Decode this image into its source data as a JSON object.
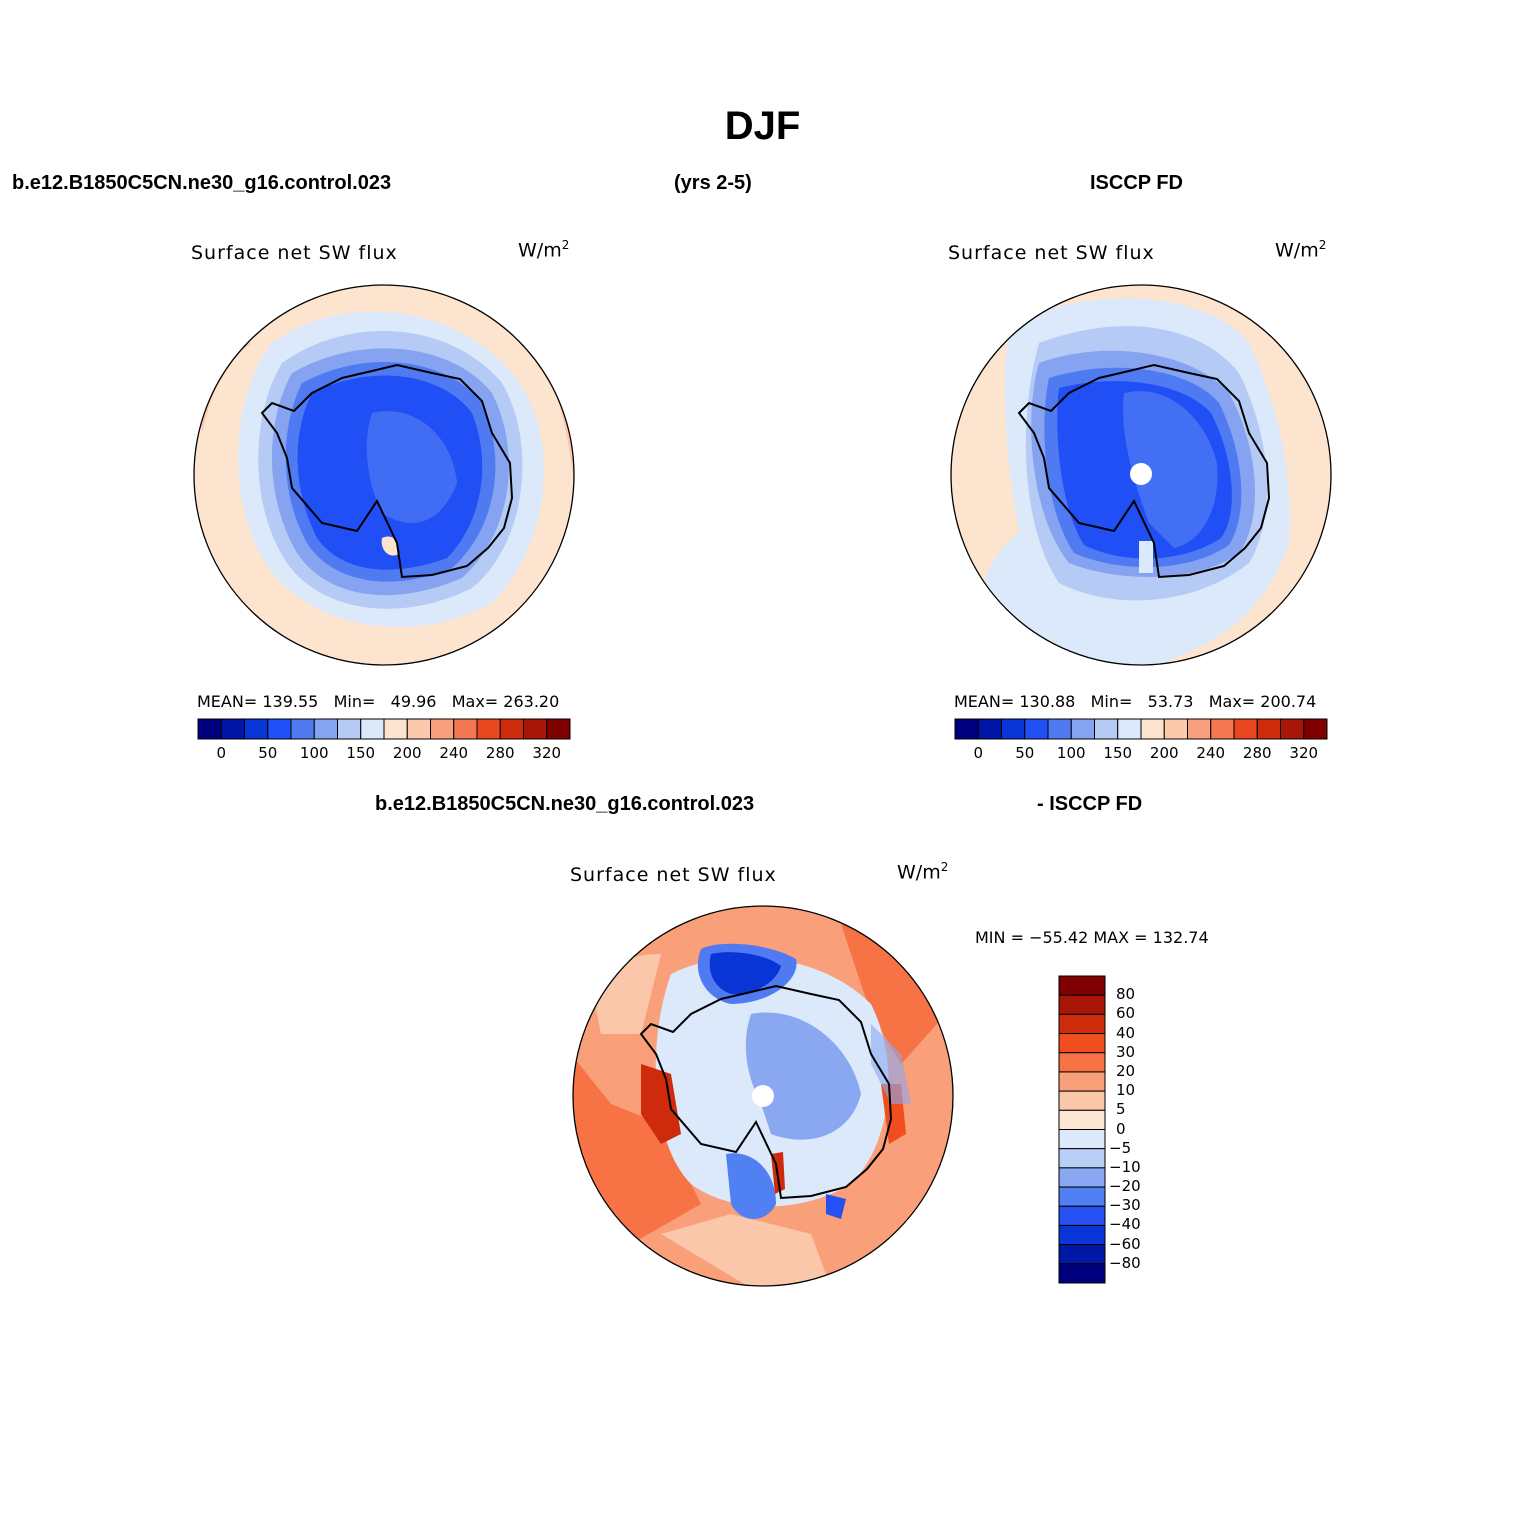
{
  "header": {
    "title": "DJF",
    "case_name": "b.e12.B1850C5CN.ne30_g16.control.023",
    "years": "(yrs 2-5)",
    "obs_name": "ISCCP FD"
  },
  "panels": [
    {
      "id": "model",
      "variable": "Surface net SW flux",
      "units": "W/m",
      "units_superscript": "2",
      "stats": {
        "mean_label": "MEAN=",
        "mean": "139.55",
        "min_label": "Min=",
        "min": "49.96",
        "max_label": "Max=",
        "max": "263.20"
      }
    },
    {
      "id": "obs",
      "variable": "Surface net SW flux",
      "units": "W/m",
      "units_superscript": "2",
      "stats": {
        "mean_label": "MEAN=",
        "mean": "130.88",
        "min_label": "Min=",
        "min": "53.73",
        "max_label": "Max=",
        "max": "200.74"
      }
    }
  ],
  "abs_colorbar": {
    "colors": [
      "#00007f",
      "#0014a6",
      "#0a35d6",
      "#1f4ff5",
      "#4f7af2",
      "#85a3f0",
      "#b5cbf5",
      "#dbe9fb",
      "#fde4cf",
      "#fcc9ad",
      "#f8a07d",
      "#f37750",
      "#e9471f",
      "#cd2b0c",
      "#a71607",
      "#7f0000"
    ],
    "tick_labels": [
      "0",
      "50",
      "100",
      "150",
      "200",
      "240",
      "280",
      "320"
    ]
  },
  "diff_panel": {
    "left_title": "b.e12.B1850C5CN.ne30_g16.control.023",
    "right_title": "- ISCCP FD",
    "variable": "Surface net SW flux",
    "units": "W/m",
    "units_superscript": "2",
    "minmax_text": "MIN = −55.42 MAX = 132.74"
  },
  "diff_colorbar": {
    "colors": [
      "#7f0000",
      "#a71607",
      "#cd2b0c",
      "#f04e1e",
      "#f77245",
      "#f99f7a",
      "#fbc7ab",
      "#fde6d3",
      "#dbe9fb",
      "#b8cff7",
      "#8aa8f2",
      "#5080f2",
      "#2550f2",
      "#0a35d6",
      "#0018a8",
      "#00007f"
    ],
    "tick_labels": [
      "80",
      "60",
      "40",
      "30",
      "20",
      "10",
      "5",
      "0",
      "−5",
      "−10",
      "−20",
      "−30",
      "−40",
      "−60",
      "−80"
    ]
  }
}
